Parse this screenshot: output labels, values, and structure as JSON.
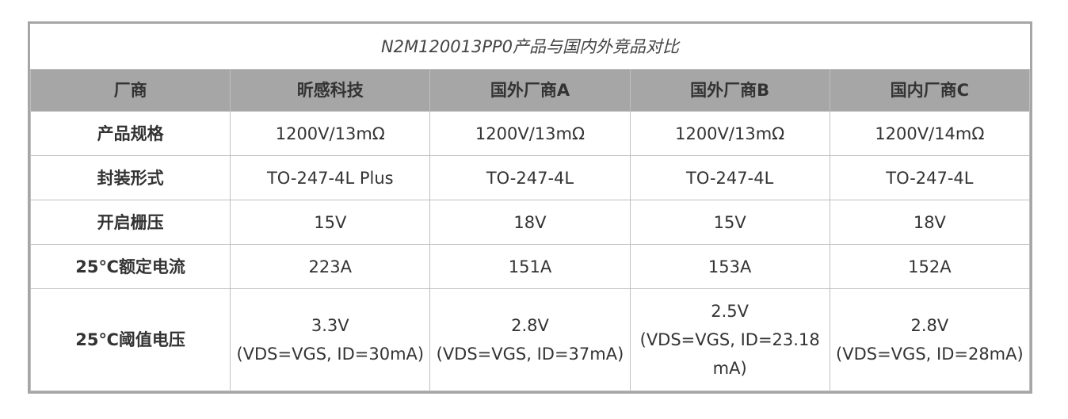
{
  "table": {
    "title": "N2M120013PP0产品与国内外竞品对比",
    "header": [
      "厂商",
      "昕感科技",
      "国外厂商A",
      "国外厂商B",
      "国内厂商C"
    ],
    "rows": [
      [
        "产品规格",
        "1200V/13mΩ",
        "1200V/13mΩ",
        "1200V/13mΩ",
        "1200V/14mΩ"
      ],
      [
        "封装形式",
        "TO-247-4L Plus",
        "TO-247-4L",
        "TO-247-4L",
        "TO-247-4L"
      ],
      [
        "开启栅压",
        "15V",
        "18V",
        "15V",
        "18V"
      ],
      [
        "25℃额定电流",
        "223A",
        "151A",
        "153A",
        "152A"
      ],
      [
        "25℃阈值电压",
        "3.3V\n(VDS=VGS, ID=30mA)",
        "2.8V\n(VDS=VGS, ID=37mA)",
        "2.5V\n(VDS=VGS, ID=23.18mA)",
        "2.8V\n(VDS=VGS, ID=28mA)"
      ]
    ]
  }
}
